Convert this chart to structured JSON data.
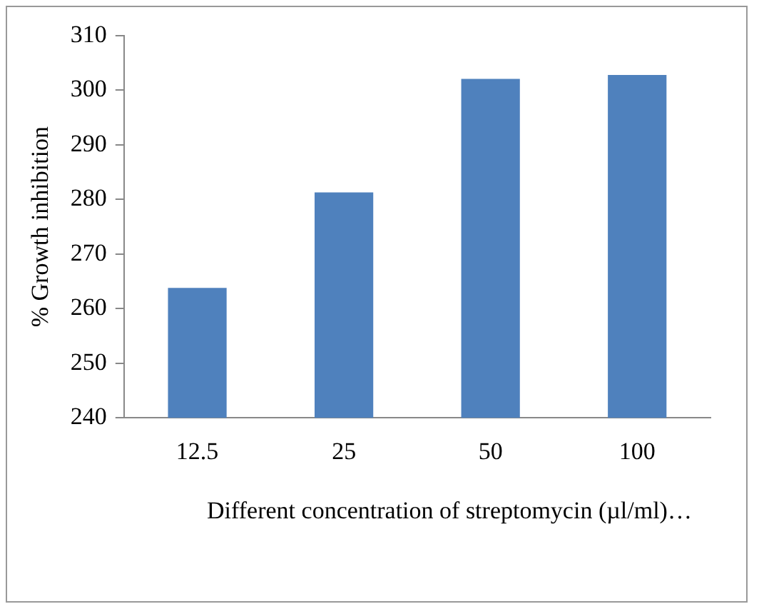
{
  "chart_data": {
    "type": "bar",
    "xlabel": "Different concentration of streptomycin (µl/ml)…",
    "ylabel": "% Growth inhibition",
    "categories": [
      "12.5",
      "25",
      "50",
      "100"
    ],
    "values": [
      263.8,
      281.3,
      302.1,
      302.8
    ],
    "color": "#4f81bd",
    "ylim": [
      240,
      310
    ],
    "yticks": [
      240,
      250,
      260,
      270,
      280,
      290,
      300,
      310
    ],
    "grid": false,
    "legend": false
  }
}
